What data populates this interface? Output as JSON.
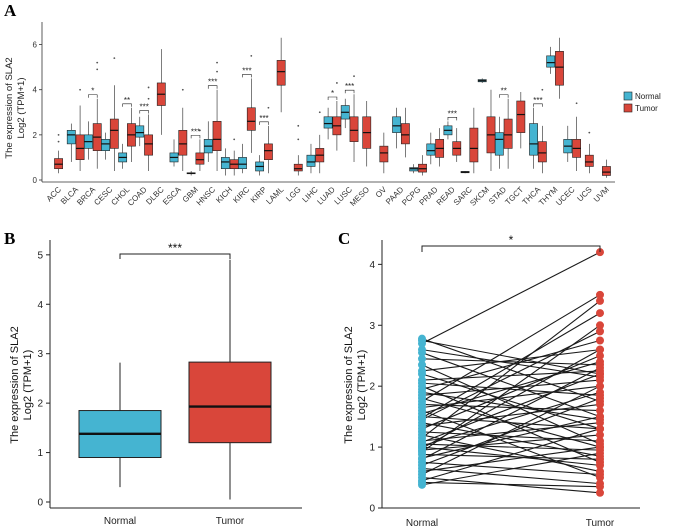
{
  "colors": {
    "normal": "#45b4d1",
    "tumor": "#d9463a",
    "line": "#1a1a1a"
  },
  "chart_data": [
    {
      "panel": "A",
      "type": "box",
      "ylabel_line1": "The expression of SLA2",
      "ylabel_line2": "Log2 (TPM+1)",
      "ylim": [
        0,
        7
      ],
      "yticks": [
        0,
        2,
        4,
        6
      ],
      "legend": [
        "Normal",
        "Tumor"
      ],
      "legend_position": "right",
      "cancers": [
        {
          "name": "ACC",
          "sig": "",
          "t": [
            0.3,
            0.5,
            0.7,
            0.95,
            1.3
          ],
          "o": [
            2.0,
            1.7
          ]
        },
        {
          "name": "BLCA",
          "sig": "",
          "n": [
            0.8,
            1.6,
            2.0,
            2.2,
            2.5
          ],
          "t": [
            0.4,
            0.9,
            1.4,
            2.0,
            3.3
          ],
          "o": [
            4.0
          ]
        },
        {
          "name": "BRCA",
          "sig": "*",
          "n": [
            0.9,
            1.4,
            1.7,
            2.0,
            2.6
          ],
          "t": [
            0.5,
            1.3,
            1.9,
            2.5,
            3.6
          ],
          "o": [
            5.2,
            4.9
          ]
        },
        {
          "name": "CESC",
          "sig": "",
          "n": [
            0.9,
            1.3,
            1.6,
            1.8,
            2.1
          ],
          "t": [
            0.4,
            1.4,
            2.2,
            2.7,
            4.2
          ],
          "o": [
            5.4
          ]
        },
        {
          "name": "CHOL",
          "sig": "**",
          "n": [
            0.5,
            0.8,
            1.0,
            1.2,
            1.6
          ],
          "t": [
            0.8,
            1.5,
            2.0,
            2.5,
            3.2
          ],
          "o": []
        },
        {
          "name": "COAD",
          "sig": "***",
          "n": [
            1.5,
            1.9,
            2.1,
            2.4,
            2.8
          ],
          "t": [
            0.4,
            1.1,
            1.6,
            2.0,
            2.9
          ],
          "o": [
            3.6,
            4.1
          ]
        },
        {
          "name": "DLBC",
          "sig": "",
          "t": [
            2.0,
            3.3,
            3.8,
            4.3,
            5.8
          ],
          "o": []
        },
        {
          "name": "ESCA",
          "sig": "",
          "n": [
            0.6,
            0.8,
            1.0,
            1.2,
            1.8
          ],
          "t": [
            0.4,
            1.1,
            1.6,
            2.2,
            3.2
          ],
          "o": [
            4.0
          ]
        },
        {
          "name": "GBM",
          "sig": "***",
          "n": [
            0.2,
            0.28,
            0.3,
            0.32,
            0.4
          ],
          "t": [
            0.4,
            0.7,
            0.9,
            1.2,
            1.8
          ],
          "o": [
            2.2
          ]
        },
        {
          "name": "HNSC",
          "sig": "***",
          "n": [
            0.8,
            1.2,
            1.5,
            1.8,
            2.6
          ],
          "t": [
            0.4,
            1.3,
            1.8,
            2.6,
            4.0
          ],
          "o": [
            5.2,
            4.8
          ]
        },
        {
          "name": "KICH",
          "sig": "",
          "n": [
            0.2,
            0.5,
            0.8,
            1.0,
            1.4
          ],
          "t": [
            0.2,
            0.5,
            0.7,
            0.9,
            1.3
          ],
          "o": [
            1.8
          ]
        },
        {
          "name": "KIRC",
          "sig": "***",
          "n": [
            0.3,
            0.5,
            0.7,
            1.0,
            1.6
          ],
          "t": [
            1.2,
            2.2,
            2.6,
            3.2,
            4.5
          ],
          "o": [
            5.5
          ]
        },
        {
          "name": "KIRP",
          "sig": "***",
          "n": [
            0.2,
            0.4,
            0.6,
            0.8,
            1.1
          ],
          "t": [
            0.3,
            0.9,
            1.3,
            1.6,
            2.4
          ],
          "o": [
            3.2
          ]
        },
        {
          "name": "LAML",
          "sig": "",
          "t": [
            3.0,
            4.2,
            4.8,
            5.3,
            6.3
          ],
          "o": []
        },
        {
          "name": "LGG",
          "sig": "",
          "t": [
            0.2,
            0.4,
            0.5,
            0.7,
            1.1
          ],
          "o": [
            1.8,
            2.4
          ]
        },
        {
          "name": "LIHC",
          "sig": "",
          "n": [
            0.3,
            0.6,
            0.8,
            1.1,
            1.6
          ],
          "t": [
            0.3,
            0.8,
            1.1,
            1.4,
            2.0
          ],
          "o": [
            3.0
          ]
        },
        {
          "name": "LUAD",
          "sig": "*",
          "n": [
            1.8,
            2.3,
            2.5,
            2.8,
            3.2
          ],
          "t": [
            1.3,
            2.0,
            2.4,
            2.8,
            3.5
          ],
          "o": [
            4.3
          ]
        },
        {
          "name": "LUSC",
          "sig": "***",
          "n": [
            2.3,
            2.7,
            3.0,
            3.3,
            3.6
          ],
          "t": [
            0.8,
            1.7,
            2.2,
            2.8,
            3.8
          ],
          "o": [
            4.6
          ]
        },
        {
          "name": "MESO",
          "sig": "",
          "t": [
            0.6,
            1.4,
            2.1,
            2.8,
            3.5
          ],
          "o": []
        },
        {
          "name": "OV",
          "sig": "",
          "t": [
            0.3,
            0.8,
            1.2,
            1.5,
            2.1
          ],
          "o": []
        },
        {
          "name": "PAAD",
          "sig": "",
          "n": [
            1.4,
            2.1,
            2.4,
            2.8,
            3.2
          ],
          "t": [
            1.0,
            1.6,
            2.0,
            2.5,
            3.2
          ],
          "o": []
        },
        {
          "name": "PCPG",
          "sig": "",
          "n": [
            0.3,
            0.4,
            0.5,
            0.55,
            0.7
          ],
          "t": [
            0.2,
            0.35,
            0.5,
            0.7,
            1.1
          ],
          "o": []
        },
        {
          "name": "PRAD",
          "sig": "",
          "n": [
            0.7,
            1.1,
            1.3,
            1.6,
            2.1
          ],
          "t": [
            0.6,
            1.0,
            1.4,
            1.8,
            2.3
          ],
          "o": []
        },
        {
          "name": "READ",
          "sig": "***",
          "n": [
            1.8,
            2.0,
            2.2,
            2.4,
            2.6
          ],
          "t": [
            0.8,
            1.1,
            1.4,
            1.7,
            2.3
          ],
          "o": []
        },
        {
          "name": "SARC",
          "sig": "",
          "n": [
            0.3,
            0.32,
            0.35,
            0.38,
            0.4
          ],
          "t": [
            0.3,
            0.8,
            1.4,
            2.3,
            3.2
          ],
          "o": []
        },
        {
          "name": "SKCM",
          "sig": "",
          "n": [
            4.3,
            4.35,
            4.4,
            4.45,
            4.5
          ],
          "t": [
            0.4,
            1.2,
            2.0,
            2.8,
            4.0
          ],
          "o": []
        },
        {
          "name": "STAD",
          "sig": "**",
          "n": [
            0.5,
            1.1,
            1.8,
            2.1,
            2.8
          ],
          "t": [
            0.5,
            1.4,
            2.0,
            2.7,
            3.6
          ],
          "o": []
        },
        {
          "name": "TGCT",
          "sig": "",
          "t": [
            1.4,
            2.1,
            2.9,
            3.5,
            3.9
          ],
          "o": []
        },
        {
          "name": "THCA",
          "sig": "***",
          "n": [
            0.5,
            1.1,
            1.6,
            2.5,
            3.2
          ],
          "t": [
            0.3,
            0.8,
            1.2,
            1.7,
            2.4
          ],
          "o": [
            4.0
          ]
        },
        {
          "name": "THYM",
          "sig": "",
          "n": [
            4.7,
            5.0,
            5.2,
            5.5,
            5.9
          ],
          "t": [
            3.6,
            4.2,
            5.0,
            5.7,
            6.3
          ],
          "o": []
        },
        {
          "name": "UCEC",
          "sig": "",
          "n": [
            0.8,
            1.2,
            1.5,
            1.8,
            2.4
          ],
          "t": [
            0.4,
            1.0,
            1.4,
            1.8,
            2.8
          ],
          "o": [
            3.4
          ]
        },
        {
          "name": "UCS",
          "sig": "",
          "t": [
            0.3,
            0.6,
            0.8,
            1.1,
            1.6
          ],
          "o": [
            2.1
          ]
        },
        {
          "name": "UVM",
          "sig": "",
          "t": [
            0.1,
            0.2,
            0.35,
            0.6,
            0.9
          ],
          "o": []
        }
      ]
    },
    {
      "panel": "B",
      "type": "box",
      "ylabel_line1": "The expression of SLA2",
      "ylabel_line2": "Log2 (TPM+1)",
      "ylim": [
        0,
        5.3
      ],
      "yticks": [
        0,
        1,
        2,
        3,
        4,
        5
      ],
      "significance": "***",
      "groups": [
        {
          "name": "Normal",
          "min": 0.3,
          "q1": 0.9,
          "median": 1.38,
          "q3": 1.85,
          "max": 2.82
        },
        {
          "name": "Tumor",
          "min": 0.05,
          "q1": 1.2,
          "median": 1.93,
          "q3": 2.83,
          "max": 4.9
        }
      ]
    },
    {
      "panel": "C",
      "type": "paired-scatter",
      "ylabel_line1": "The expression of SLA2",
      "ylabel_line2": "Log2 (TPM+1)",
      "ylim": [
        0,
        4.4
      ],
      "yticks": [
        0,
        1,
        2,
        3,
        4
      ],
      "significance": "*",
      "x_categories": [
        "Normal",
        "Tumor"
      ],
      "pairs": [
        [
          0.38,
          0.9
        ],
        [
          0.45,
          1.3
        ],
        [
          0.5,
          0.25
        ],
        [
          0.55,
          2.0
        ],
        [
          0.6,
          1.0
        ],
        [
          0.65,
          0.4
        ],
        [
          0.7,
          1.8
        ],
        [
          0.75,
          0.55
        ],
        [
          0.8,
          2.3
        ],
        [
          0.82,
          1.5
        ],
        [
          0.88,
          0.8
        ],
        [
          0.92,
          3.0
        ],
        [
          0.95,
          1.2
        ],
        [
          0.98,
          2.6
        ],
        [
          1.0,
          0.7
        ],
        [
          1.02,
          1.9
        ],
        [
          1.05,
          0.95
        ],
        [
          1.08,
          2.2
        ],
        [
          1.1,
          1.4
        ],
        [
          1.15,
          3.4
        ],
        [
          1.2,
          0.6
        ],
        [
          1.25,
          1.1
        ],
        [
          1.3,
          2.5
        ],
        [
          1.35,
          1.7
        ],
        [
          1.4,
          0.85
        ],
        [
          1.45,
          2.9
        ],
        [
          1.5,
          1.3
        ],
        [
          1.55,
          2.4
        ],
        [
          1.6,
          0.5
        ],
        [
          1.65,
          2.0
        ],
        [
          1.7,
          1.6
        ],
        [
          1.75,
          3.5
        ],
        [
          1.8,
          1.0
        ],
        [
          1.85,
          2.1
        ],
        [
          1.9,
          1.45
        ],
        [
          1.95,
          2.75
        ],
        [
          2.0,
          0.75
        ],
        [
          2.05,
          1.85
        ],
        [
          2.1,
          2.25
        ],
        [
          2.2,
          1.3
        ],
        [
          2.25,
          2.6
        ],
        [
          2.35,
          1.05
        ],
        [
          2.45,
          2.35
        ],
        [
          2.55,
          1.5
        ],
        [
          2.6,
          2.15
        ],
        [
          2.75,
          2.2
        ],
        [
          2.78,
          1.75
        ],
        [
          2.7,
          4.2
        ],
        [
          1.48,
          3.2
        ],
        [
          0.42,
          0.35
        ]
      ]
    }
  ]
}
